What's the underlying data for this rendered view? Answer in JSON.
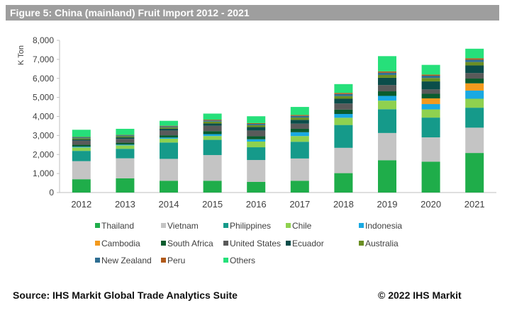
{
  "title": "Figure 5: China (mainland) Fruit Import 2012 - 2021",
  "source": "Source: IHS Markit Global Trade Analytics Suite",
  "copyright": "© 2022 IHS Markit",
  "chart_data": {
    "type": "bar",
    "stacked": true,
    "title": "Figure 5: China (mainland) Fruit Import 2012 - 2021",
    "xlabel": "",
    "ylabel": "K Ton",
    "ylim": [
      0,
      8000
    ],
    "yticks": [
      0,
      1000,
      2000,
      3000,
      4000,
      5000,
      6000,
      7000,
      8000
    ],
    "ytick_labels": [
      "0",
      "1,000",
      "2,000",
      "3,000",
      "4,000",
      "5,000",
      "6,000",
      "7,000",
      "8,000"
    ],
    "grid": false,
    "legend_position": "bottom",
    "categories": [
      "2012",
      "2013",
      "2014",
      "2015",
      "2016",
      "2017",
      "2018",
      "2019",
      "2020",
      "2021"
    ],
    "series": [
      {
        "name": "Thailand",
        "color": "#1fad4a",
        "values": [
          700,
          750,
          620,
          620,
          560,
          620,
          1020,
          1700,
          1620,
          2080
        ]
      },
      {
        "name": "Vietnam",
        "color": "#c4c4c4",
        "values": [
          950,
          1050,
          1150,
          1350,
          1150,
          1170,
          1330,
          1430,
          1280,
          1330
        ]
      },
      {
        "name": "Philippines",
        "color": "#159a8a",
        "values": [
          540,
          500,
          860,
          800,
          670,
          880,
          1200,
          1250,
          1040,
          1050
        ]
      },
      {
        "name": "Chile",
        "color": "#8fd14f",
        "values": [
          180,
          180,
          200,
          200,
          300,
          300,
          380,
          450,
          430,
          470
        ]
      },
      {
        "name": "Indonesia",
        "color": "#19a9e2",
        "values": [
          40,
          40,
          60,
          100,
          120,
          200,
          200,
          250,
          280,
          430
        ]
      },
      {
        "name": "Cambodia",
        "color": "#f39a1e",
        "values": [
          0,
          0,
          0,
          0,
          0,
          0,
          0,
          0,
          300,
          380
        ]
      },
      {
        "name": "South Africa",
        "color": "#0a5c2e",
        "values": [
          100,
          100,
          120,
          160,
          160,
          180,
          230,
          240,
          240,
          250
        ]
      },
      {
        "name": "United States",
        "color": "#5a5a5a",
        "values": [
          220,
          200,
          250,
          280,
          300,
          270,
          320,
          330,
          230,
          290
        ]
      },
      {
        "name": "Ecuador",
        "color": "#0b4d4a",
        "values": [
          60,
          80,
          100,
          120,
          180,
          200,
          250,
          380,
          420,
          400
        ]
      },
      {
        "name": "Australia",
        "color": "#6b8f23",
        "values": [
          60,
          60,
          70,
          100,
          100,
          120,
          140,
          150,
          180,
          180
        ]
      },
      {
        "name": "New Zealand",
        "color": "#2f6e92",
        "values": [
          50,
          50,
          50,
          60,
          70,
          90,
          110,
          120,
          120,
          120
        ]
      },
      {
        "name": "Peru",
        "color": "#b15a1b",
        "values": [
          20,
          20,
          30,
          40,
          40,
          50,
          60,
          70,
          60,
          80
        ]
      },
      {
        "name": "Others",
        "color": "#26e07a",
        "values": [
          380,
          320,
          260,
          320,
          360,
          420,
          460,
          800,
          510,
          500
        ]
      }
    ]
  }
}
